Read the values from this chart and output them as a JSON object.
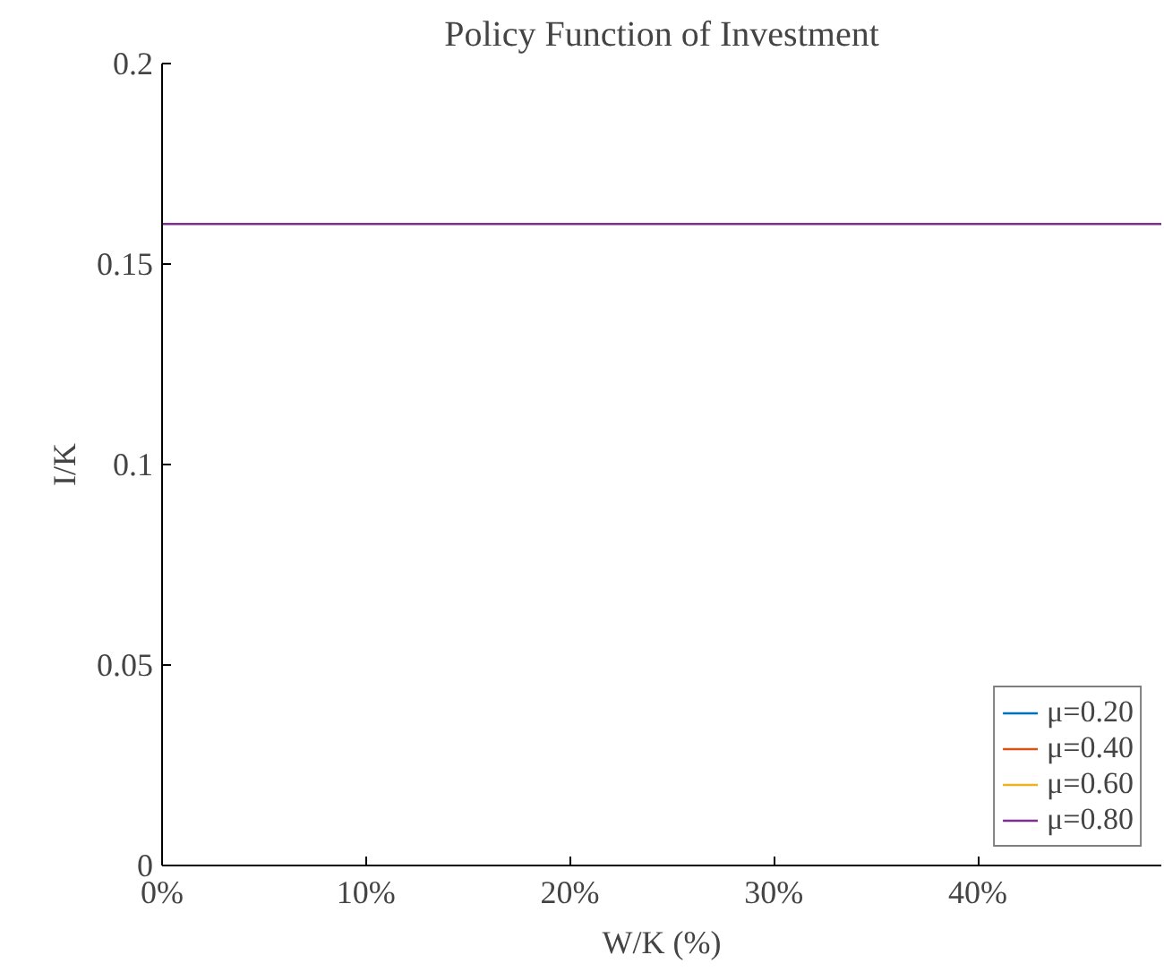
{
  "chart_data": {
    "type": "line",
    "title": "Policy Function of Investment",
    "xlabel": "W/K (%)",
    "ylabel": "I/K",
    "x": [
      0,
      49
    ],
    "series": [
      {
        "name": "μ=0.20",
        "color": "#0072bd",
        "values": [
          null,
          null
        ]
      },
      {
        "name": "μ=0.40",
        "color": "#d95319",
        "values": [
          null,
          null
        ]
      },
      {
        "name": "μ=0.60",
        "color": "#edb120",
        "values": [
          null,
          null
        ]
      },
      {
        "name": "μ=0.80",
        "color": "#7e2f8e",
        "values": [
          0.16,
          0.16
        ]
      }
    ],
    "xlim": [
      0,
      49
    ],
    "xticks": [
      {
        "value": 0,
        "label": "0%"
      },
      {
        "value": 10,
        "label": "10%"
      },
      {
        "value": 20,
        "label": "20%"
      },
      {
        "value": 30,
        "label": "30%"
      },
      {
        "value": 40,
        "label": "40%"
      }
    ],
    "ylim": [
      0,
      0.2
    ],
    "yticks": [
      0,
      0.05,
      0.1,
      0.15,
      0.2
    ],
    "grid": false,
    "legend": "bottom right",
    "line_style": "solid"
  }
}
